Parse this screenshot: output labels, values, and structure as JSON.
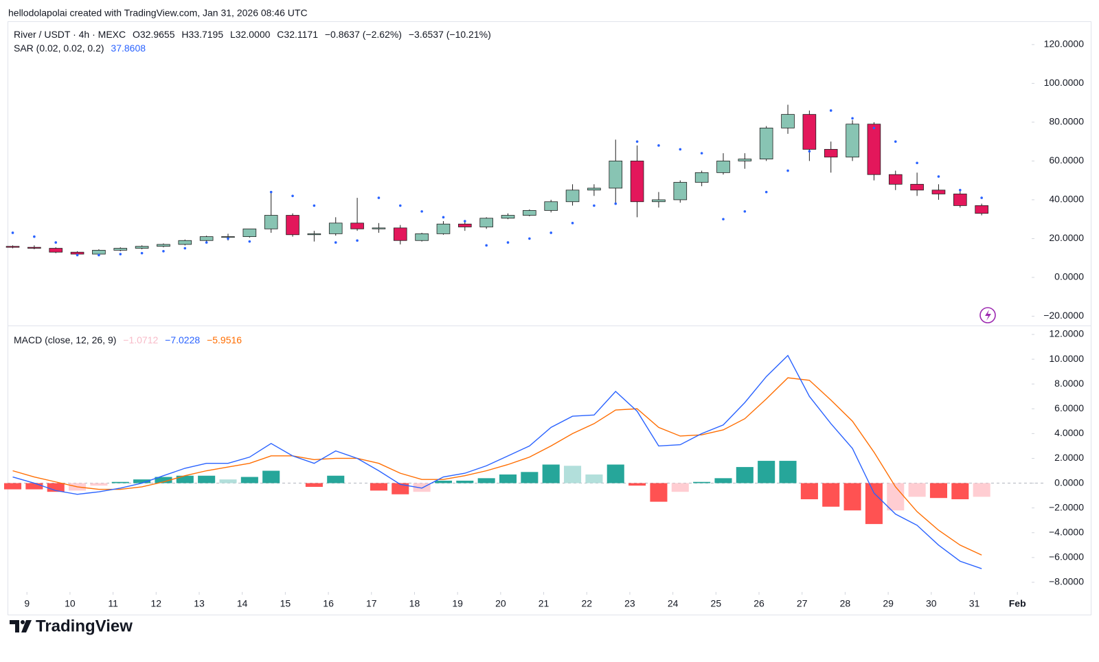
{
  "header": {
    "attribution": "hellodolapolai created with TradingView.com, Jan 31, 2026 08:46 UTC"
  },
  "chart_data": [
    {
      "type": "candlestick",
      "legend": {
        "symbol": "River / USDT · 4h · MEXC",
        "open": "O32.9655",
        "high": "H33.7195",
        "low": "L32.0000",
        "close": "C32.1171",
        "change": "−0.8637 (−2.62%)",
        "change_long": "−3.6537 (−10.21%)"
      },
      "x": [
        8.67,
        9.17,
        9.67,
        10.17,
        10.67,
        11.17,
        11.67,
        12.17,
        12.67,
        13.17,
        13.67,
        14.17,
        14.67,
        15.17,
        15.67,
        16.17,
        16.67,
        17.17,
        17.67,
        18.17,
        18.67,
        19.17,
        19.67,
        20.17,
        20.67,
        21.17,
        21.67,
        22.17,
        22.67,
        23.17,
        23.67,
        24.17,
        24.67,
        25.17,
        25.67,
        26.17,
        26.67,
        27.17,
        27.67,
        28.17,
        28.67,
        29.17,
        29.67,
        30.17,
        30.67,
        31.17
      ],
      "open": [
        16,
        15.5,
        15,
        13,
        12,
        14,
        15,
        16,
        17,
        19,
        21,
        21,
        25,
        32,
        22,
        22.5,
        28,
        25,
        25.5,
        19,
        22.5,
        27.5,
        26,
        30.5,
        32,
        34.5,
        39,
        45,
        46,
        60,
        39,
        40,
        49,
        54,
        60,
        61,
        77,
        84,
        66,
        62,
        79,
        53,
        48,
        45,
        43,
        37
      ],
      "high": [
        16.5,
        16.5,
        15.5,
        13.5,
        14.5,
        15.5,
        16.5,
        17.5,
        19.5,
        21.5,
        22.5,
        25,
        44,
        33,
        24,
        31,
        41,
        28,
        27,
        23,
        29,
        29,
        31,
        33,
        35,
        40,
        48,
        48,
        71,
        68,
        44,
        50,
        55,
        64,
        64,
        78,
        89,
        86,
        70,
        81,
        80,
        55,
        54,
        48,
        45,
        38
      ],
      "low": [
        15,
        14.5,
        12.5,
        11.5,
        11.5,
        13.5,
        14.5,
        15.5,
        16.5,
        18.5,
        19,
        20.5,
        23,
        21,
        18.5,
        21.5,
        24,
        23,
        17,
        18.5,
        22,
        24,
        25,
        30,
        31.5,
        33.5,
        37,
        42,
        38,
        31,
        36,
        38.5,
        47,
        53,
        56,
        60,
        74,
        60,
        54,
        60,
        50,
        45,
        42,
        40,
        36,
        32
      ],
      "close": [
        15.5,
        15,
        13,
        12,
        14,
        15,
        16,
        17,
        19,
        21,
        21,
        25,
        32,
        22,
        22.5,
        28,
        25,
        25.5,
        19,
        22.5,
        27.5,
        26,
        30.5,
        32,
        34.5,
        39,
        45,
        46,
        60,
        39,
        40,
        49,
        54,
        60,
        61,
        77,
        84,
        66,
        62,
        79,
        53,
        48,
        45,
        43,
        37,
        33
      ],
      "up_color": "#88c4b3",
      "down_color": "#e3175b",
      "border_color": "#1e1e1e",
      "xlim": [
        8.55,
        32.3
      ],
      "xticks": [
        9,
        10,
        11,
        12,
        13,
        14,
        15,
        16,
        17,
        18,
        19,
        20,
        21,
        22,
        23,
        24,
        25,
        26,
        27,
        28,
        29,
        30,
        31,
        {
          "value": 32,
          "label": "Feb"
        }
      ],
      "ylim": [
        -24.8,
        132
      ],
      "yticks": [
        {
          "value": -20,
          "label": "−20.0000"
        },
        {
          "value": 0,
          "label": "0.0000"
        },
        {
          "value": 20,
          "label": "20.0000"
        },
        {
          "value": 40,
          "label": "40.0000"
        },
        {
          "value": 60,
          "label": "60.0000"
        },
        {
          "value": 80,
          "label": "80.0000"
        },
        {
          "value": 100,
          "label": "100.0000"
        },
        {
          "value": 120,
          "label": "120.0000"
        }
      ],
      "grid": false,
      "sar": {
        "label": "SAR (0.02, 0.02, 0.2)",
        "last": "37.8608",
        "color": "#2962ff",
        "values": [
          23,
          21,
          18,
          11.5,
          11.5,
          12,
          12.5,
          13.5,
          15,
          18,
          20,
          18.5,
          44,
          42,
          37,
          18,
          19,
          41,
          37,
          34,
          31,
          29,
          16.5,
          18,
          20,
          23,
          28,
          37,
          38,
          70,
          68,
          66,
          64,
          30,
          34,
          44,
          55,
          65,
          86,
          82,
          77,
          70,
          59,
          52,
          45,
          41
        ]
      }
    },
    {
      "type": "macd",
      "label": "MACD (close, 12, 26, 9)",
      "ylim": [
        -8.78,
        12.72
      ],
      "yticks": [
        {
          "value": -8,
          "label": "−8.0000"
        },
        {
          "value": -6,
          "label": "−6.0000"
        },
        {
          "value": -4,
          "label": "−4.0000"
        },
        {
          "value": -2,
          "label": "−2.0000"
        },
        {
          "value": 0,
          "label": "0.0000"
        },
        {
          "value": 2,
          "label": "2.0000"
        },
        {
          "value": 4,
          "label": "4.0000"
        },
        {
          "value": 6,
          "label": "6.0000"
        },
        {
          "value": 8,
          "label": "8.0000"
        },
        {
          "value": 10,
          "label": "10.0000"
        },
        {
          "value": 12,
          "label": "12.0000"
        }
      ],
      "histogram": {
        "last": "−1.0712",
        "colors": [
          "#26a69a",
          "#b2dfdb",
          "#ff5252",
          "#ffcdd2"
        ],
        "values": [
          -0.5,
          -0.5,
          -0.7,
          -0.6,
          -0.2,
          0.1,
          0.3,
          0.5,
          0.6,
          0.6,
          0.3,
          0.5,
          1.0,
          0.0,
          -0.3,
          0.6,
          0.0,
          -0.6,
          -0.9,
          -0.7,
          0.2,
          0.2,
          0.4,
          0.7,
          0.9,
          1.5,
          1.4,
          0.7,
          1.5,
          -0.2,
          -1.5,
          -0.7,
          0.1,
          0.4,
          1.3,
          1.8,
          1.8,
          -1.3,
          -1.9,
          -2.2,
          -3.3,
          -2.2,
          -1.1,
          -1.2,
          -1.3,
          -1.1
        ]
      },
      "macd": {
        "last": "−7.0228",
        "color": "#2962ff",
        "values": [
          0.5,
          0.0,
          -0.6,
          -0.9,
          -0.7,
          -0.4,
          0.0,
          0.6,
          1.2,
          1.6,
          1.6,
          2.1,
          3.2,
          2.2,
          1.6,
          2.6,
          2.0,
          1.0,
          -0.1,
          -0.4,
          0.5,
          0.8,
          1.4,
          2.2,
          3.0,
          4.5,
          5.4,
          5.5,
          7.4,
          5.8,
          3.0,
          3.1,
          4.0,
          4.7,
          6.5,
          8.6,
          10.3,
          7.0,
          4.8,
          2.8,
          -0.8,
          -2.5,
          -3.4,
          -5.0,
          -6.3,
          -6.9
        ]
      },
      "signal": {
        "last": "−5.9516",
        "color": "#ff6d00",
        "values": [
          1.0,
          0.5,
          0.1,
          -0.3,
          -0.5,
          -0.5,
          -0.3,
          0.1,
          0.6,
          1.0,
          1.3,
          1.6,
          2.2,
          2.2,
          1.9,
          2.0,
          2.0,
          1.6,
          0.8,
          0.3,
          0.3,
          0.6,
          1.0,
          1.5,
          2.1,
          3.0,
          4.0,
          4.8,
          5.9,
          6.0,
          4.5,
          3.8,
          3.9,
          4.3,
          5.2,
          6.8,
          8.5,
          8.3,
          6.7,
          5.0,
          2.5,
          -0.3,
          -2.3,
          -3.8,
          -5.0,
          -5.8
        ]
      }
    }
  ],
  "footer": {
    "brand": "TradingView"
  }
}
